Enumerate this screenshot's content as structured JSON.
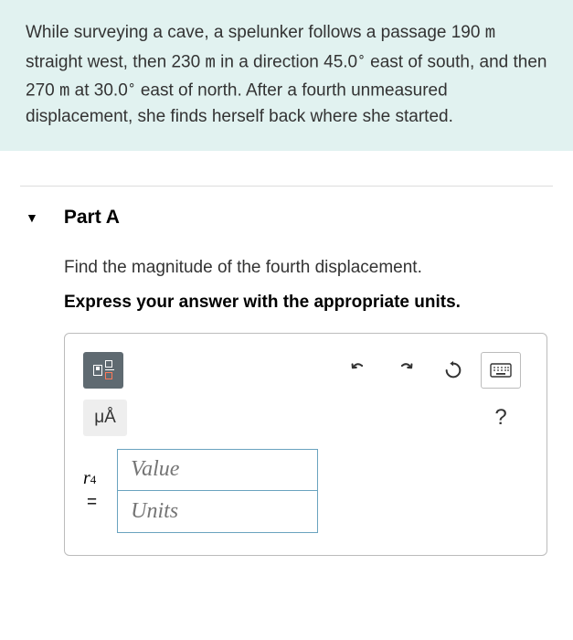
{
  "problem": {
    "html": "While surveying a cave, a spelunker follows a passage 190 <span class='unit'>m</span> straight west, then 230 <span class='unit'>m</span> in a direction 45.0<span class='deg'>∘</span> east of south, and then 270 <span class='unit'>m</span> at 30.0<span class='deg'>∘</span> east of north. After a fourth unmeasured displacement, she finds herself back where she started."
  },
  "part": {
    "label": "Part A",
    "prompt": "Find the magnitude of the fourth displacement.",
    "instruction": "Express your answer with the appropriate units."
  },
  "toolbar": {
    "mua_label": "μÅ",
    "help_label": "?"
  },
  "input": {
    "variable": "r",
    "subscript": "4",
    "equals": "=",
    "value_placeholder": "Value",
    "units_placeholder": "Units"
  },
  "colors": {
    "problem_bg": "#e1f2f0",
    "panel_border": "#bcbcbc",
    "tool_dark": "#5f6a71",
    "input_border": "#6aa3bf",
    "placeholder": "#999999",
    "accent": "#ff7a59"
  }
}
